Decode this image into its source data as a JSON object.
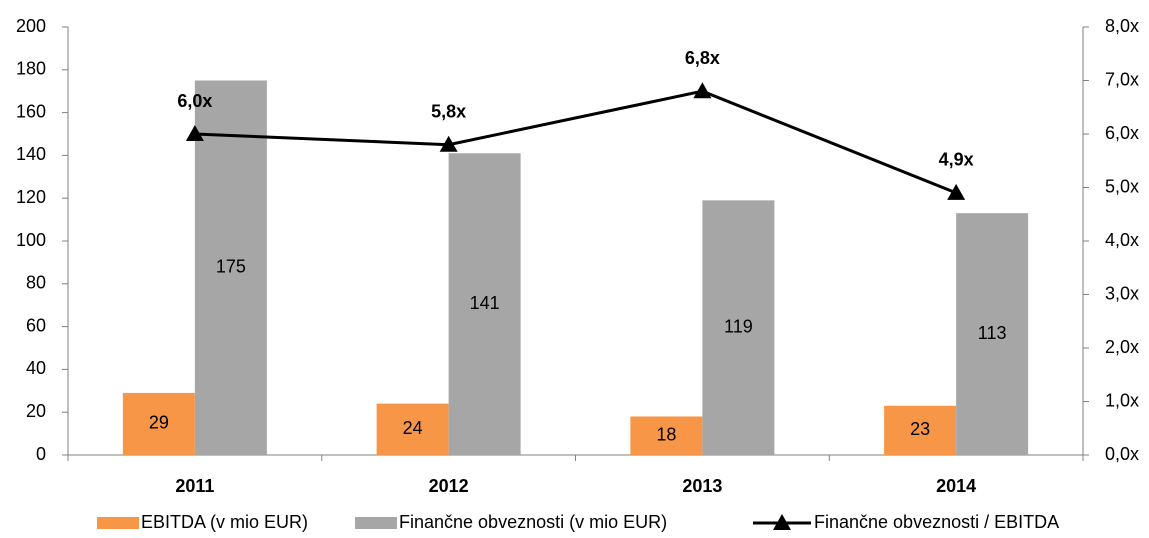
{
  "chart_data": {
    "type": "bar_line",
    "categories": [
      "2011",
      "2012",
      "2013",
      "2014"
    ],
    "series": [
      {
        "name": "EBITDA (v mio EUR)",
        "color": "#f79646",
        "values": [
          29,
          24,
          18,
          23
        ]
      },
      {
        "name": "Finančne obveznosti (v mio EUR)",
        "color": "#a6a6a6",
        "values": [
          175,
          141,
          119,
          113
        ]
      },
      {
        "name": "Finančne obveznosti / EBITDA",
        "color": "#000000",
        "axis": "y2",
        "values": [
          6.0,
          5.8,
          6.8,
          4.9
        ],
        "value_labels": [
          "6,0x",
          "5,8x",
          "6,8x",
          "4,9x"
        ]
      }
    ],
    "ylim": [
      0,
      200
    ],
    "yticks": [
      0,
      20,
      40,
      60,
      80,
      100,
      120,
      140,
      160,
      180,
      200
    ],
    "y2lim": [
      0,
      8
    ],
    "y2ticks": [
      {
        "value": 0,
        "label": "0,0x"
      },
      {
        "value": 1,
        "label": "1,0x"
      },
      {
        "value": 2,
        "label": "2,0x"
      },
      {
        "value": 3,
        "label": "3,0x"
      },
      {
        "value": 4,
        "label": "4,0x"
      },
      {
        "value": 5,
        "label": "5,0x"
      },
      {
        "value": 6,
        "label": "6,0x"
      },
      {
        "value": 7,
        "label": "7,0x"
      },
      {
        "value": 8,
        "label": "8,0x"
      }
    ],
    "grid": false,
    "legend": "bottom"
  }
}
